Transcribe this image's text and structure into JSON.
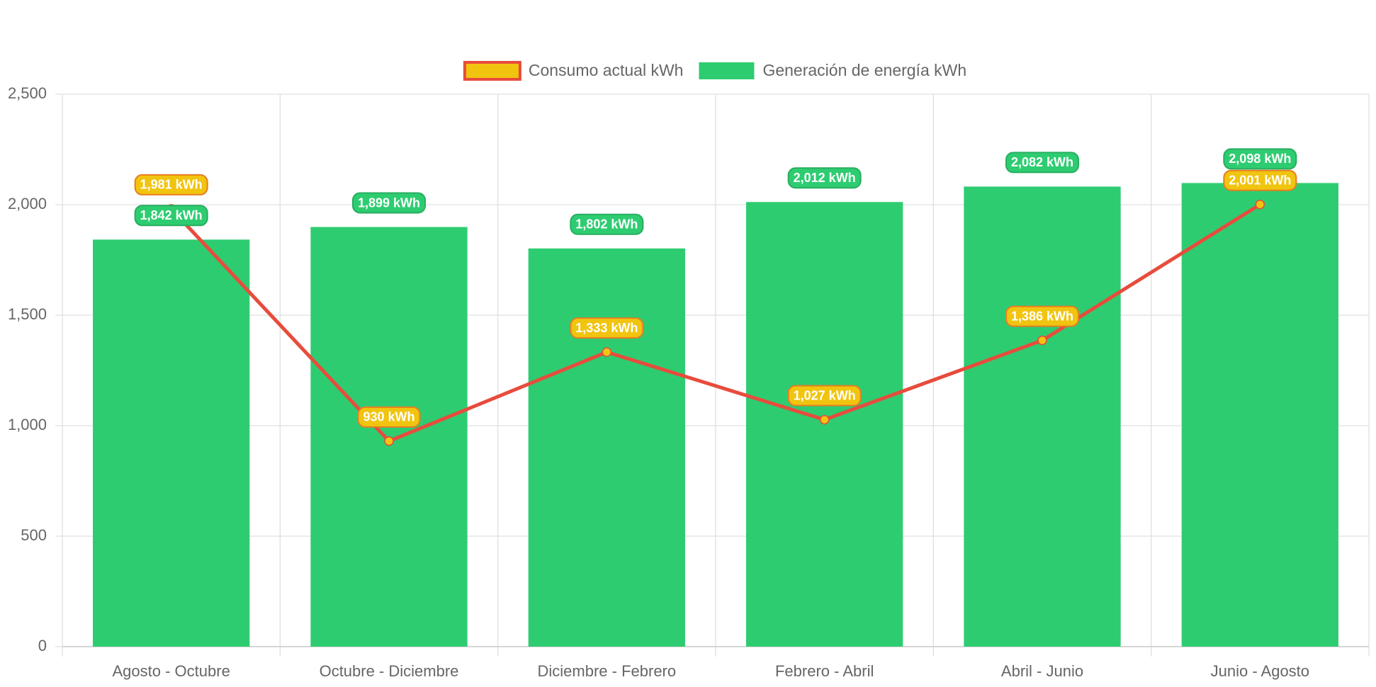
{
  "chart_data": {
    "type": "bar",
    "categories": [
      "Agosto - Octubre",
      "Octubre - Diciembre",
      "Diciembre - Febrero",
      "Febrero - Abril",
      "Abril - Junio",
      "Junio - Agosto"
    ],
    "series": [
      {
        "name": "Consumo actual kWh",
        "type": "line",
        "color": "#e74c3c",
        "point_color": "#f1c40f",
        "values": [
          1981,
          930,
          1333,
          1027,
          1386,
          2001
        ],
        "value_labels": [
          "1,981 kWh",
          "930 kWh",
          "1,333 kWh",
          "1,027 kWh",
          "1,386 kWh",
          "2,001 kWh"
        ]
      },
      {
        "name": "Generación de energía kWh",
        "type": "bar",
        "color": "#2ecc71",
        "values": [
          1842,
          1899,
          1802,
          2012,
          2082,
          2098
        ],
        "value_labels": [
          "1,842 kWh",
          "1,899 kWh",
          "1,802 kWh",
          "2,012 kWh",
          "2,082 kWh",
          "2,098 kWh"
        ]
      }
    ],
    "ylim": [
      0,
      2500
    ],
    "yticks": [
      0,
      500,
      {
        "value": 1000,
        "label": "1,000"
      },
      {
        "value": 1500,
        "label": "1,500"
      },
      {
        "value": 2000,
        "label": "2,000"
      },
      {
        "value": 2500,
        "label": "2,500"
      }
    ],
    "grid": true,
    "legend": "top"
  }
}
